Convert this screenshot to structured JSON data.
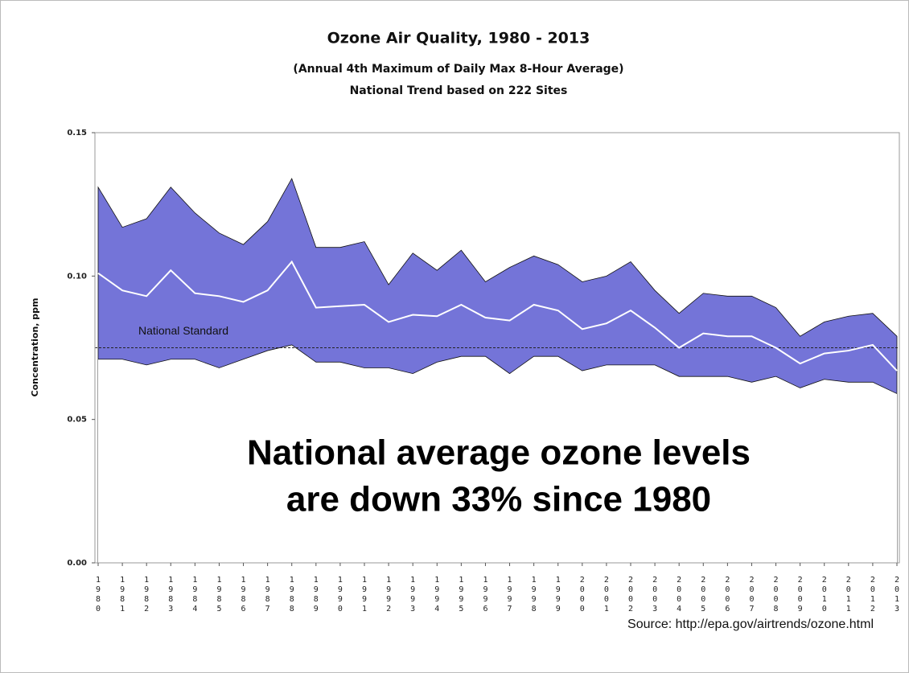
{
  "chart_data": {
    "type": "band",
    "title": "Ozone Air Quality, 1980 - 2013",
    "subtitle": [
      "(Annual 4th Maximum of Daily Max 8-Hour Average)",
      "National Trend based on 222 Sites"
    ],
    "y_label": "Concentration, ppm",
    "source": "Source: http://epa.gov/airtrends/ozone.html",
    "categories": [
      "1980",
      "1981",
      "1982",
      "1983",
      "1984",
      "1985",
      "1986",
      "1987",
      "1988",
      "1989",
      "1990",
      "1991",
      "1992",
      "1993",
      "1994",
      "1995",
      "1996",
      "1997",
      "1998",
      "1999",
      "2000",
      "2001",
      "2002",
      "2003",
      "2004",
      "2005",
      "2006",
      "2007",
      "2008",
      "2009",
      "2010",
      "2011",
      "2012",
      "2013"
    ],
    "series": [
      {
        "color": "#ffffff",
        "values": [
          0.071,
          0.071,
          0.069,
          0.071,
          0.071,
          0.068,
          0.071,
          0.074,
          0.076,
          0.07,
          0.07,
          0.068,
          0.068,
          0.066,
          0.07,
          0.072,
          0.072,
          0.066,
          0.072,
          0.072,
          0.067,
          0.069,
          0.069,
          0.069,
          0.065,
          0.065,
          0.065,
          0.063,
          0.065,
          0.061,
          0.064,
          0.063,
          0.063,
          0.059
        ]
      },
      {
        "color": "#ffffff",
        "values": [
          0.101,
          0.095,
          0.093,
          0.102,
          0.094,
          0.093,
          0.091,
          0.095,
          0.105,
          0.089,
          0.0895,
          0.09,
          0.084,
          0.0865,
          0.086,
          0.09,
          0.0855,
          0.0845,
          0.09,
          0.088,
          0.0815,
          0.0835,
          0.088,
          0.082,
          0.075,
          0.08,
          0.079,
          0.079,
          0.075,
          0.0695,
          0.073,
          0.074,
          0.076,
          0.067
        ]
      },
      {
        "color": "#7474d8",
        "values": [
          0.131,
          0.117,
          0.12,
          0.131,
          0.122,
          0.115,
          0.111,
          0.119,
          0.134,
          0.11,
          0.11,
          0.112,
          0.097,
          0.108,
          0.102,
          0.109,
          0.098,
          0.103,
          0.107,
          0.104,
          0.098,
          0.1,
          0.105,
          0.095,
          0.087,
          0.094,
          0.093,
          0.093,
          0.089,
          0.079,
          0.084,
          0.086,
          0.087,
          0.079
        ]
      }
    ],
    "ylim": [
      0,
      0.15
    ],
    "yticks": [
      {
        "value": 0,
        "label": "0.00"
      },
      {
        "value": 0.05,
        "label": "0.05"
      },
      {
        "value": 0.1,
        "label": "0.10"
      },
      {
        "value": 0.15,
        "label": "0.15"
      }
    ],
    "reference_line": {
      "label": "National Standard",
      "value": 0.075
    },
    "annotations": [
      "National average ozone levels",
      "are down 33% since 1980"
    ]
  }
}
